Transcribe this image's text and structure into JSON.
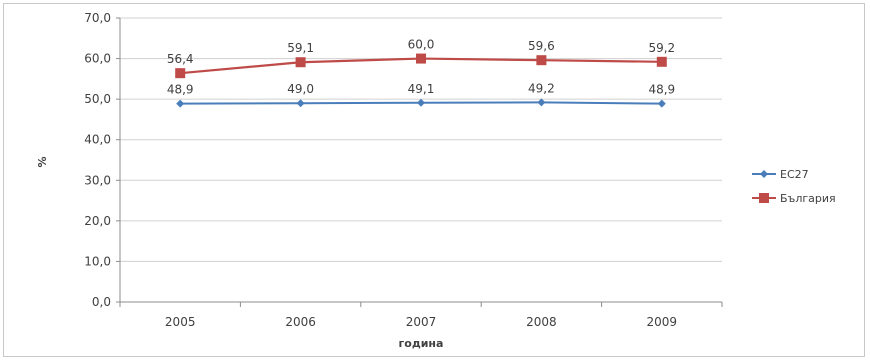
{
  "chart_data": {
    "type": "line",
    "categories": [
      "2005",
      "2006",
      "2007",
      "2008",
      "2009"
    ],
    "series": [
      {
        "name": "ЕС27",
        "values": [
          48.9,
          49.0,
          49.1,
          49.2,
          48.9
        ],
        "labels": [
          "48,9",
          "49,0",
          "49,1",
          "49,2",
          "48,9"
        ],
        "color": "#4a7ebb",
        "marker": "diamond"
      },
      {
        "name": "България",
        "values": [
          56.4,
          59.1,
          60.0,
          59.6,
          59.2
        ],
        "labels": [
          "56,4",
          "59,1",
          "60,0",
          "59,6",
          "59,2"
        ],
        "color": "#be4b48",
        "marker": "square"
      }
    ],
    "xlabel": "година",
    "ylabel": "%",
    "ylim": [
      0,
      70
    ],
    "yticks": [
      0,
      10,
      20,
      30,
      40,
      50,
      60,
      70
    ],
    "ytick_labels": [
      "0,0",
      "10,0",
      "20,0",
      "30,0",
      "40,0",
      "50,0",
      "60,0",
      "70,0"
    ],
    "grid": true,
    "legend_position": "right"
  }
}
